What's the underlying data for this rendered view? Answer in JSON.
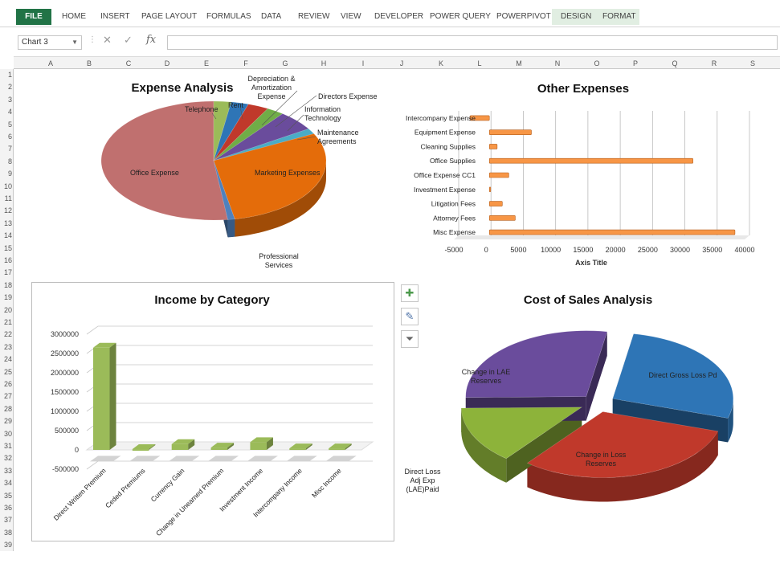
{
  "ribbon": {
    "tabs": [
      "FILE",
      "HOME",
      "INSERT",
      "PAGE LAYOUT",
      "FORMULAS",
      "DATA",
      "REVIEW",
      "VIEW",
      "DEVELOPER",
      "POWER QUERY",
      "POWERPIVOT",
      "DESIGN",
      "FORMAT"
    ]
  },
  "formula_bar": {
    "name_box": "Chart 3",
    "fx_label": "fx",
    "formula": ""
  },
  "columns": [
    "A",
    "B",
    "C",
    "D",
    "E",
    "F",
    "G",
    "H",
    "I",
    "J",
    "K",
    "L",
    "M",
    "N",
    "O",
    "P",
    "Q",
    "R",
    "S"
  ],
  "rows": [
    "1",
    "2",
    "3",
    "4",
    "5",
    "6",
    "7",
    "8",
    "9",
    "10",
    "11",
    "12",
    "13",
    "14",
    "15",
    "16",
    "17",
    "18",
    "19",
    "20",
    "21",
    "22",
    "23",
    "24",
    "25",
    "26",
    "27",
    "28",
    "29",
    "30",
    "31",
    "32",
    "33",
    "34",
    "35",
    "36",
    "37",
    "38",
    "39"
  ],
  "chart_data": [
    {
      "type": "pie",
      "title": "Expense Analysis",
      "labels": [
        "Office Expense",
        "Telephone",
        "Rent",
        "Depreciation & Amortization Expense",
        "Directors Expense",
        "Information Technology",
        "Maintenance Agreements",
        "Marketing Expenses",
        "Professional Services"
      ],
      "values": [
        52,
        2.5,
        2.5,
        3,
        2.5,
        5.5,
        1.5,
        29.5,
        1
      ],
      "colors": [
        "#c0706f",
        "#9bbb59",
        "#2e75b6",
        "#c0392b",
        "#70ad47",
        "#6a4c9c",
        "#4bacc6",
        "#e46c0a",
        "#4f81bd"
      ]
    },
    {
      "type": "bar",
      "orientation": "horizontal",
      "title": "Other Expenses",
      "categories": [
        "Misc Expense",
        "Attorney Fees",
        "Litigation Fees",
        "Investment Expense",
        "Office Expense CC1",
        "Office Supplies",
        "Cleaning Supplies",
        "Equipment Expense",
        "Intercompany Expense"
      ],
      "values": [
        38000,
        4000,
        2000,
        200,
        3000,
        31500,
        1200,
        6500,
        -3000
      ],
      "xlabel": "Axis Title",
      "ticks": [
        "-5000",
        "0",
        "5000",
        "10000",
        "15000",
        "20000",
        "25000",
        "30000",
        "35000",
        "40000"
      ],
      "xlim": [
        -5000,
        40000
      ],
      "color": "#f79646"
    },
    {
      "type": "bar",
      "title": "Income by Category",
      "categories": [
        "Direct Written Premium",
        "Ceded Premiums",
        "Currency Gain",
        "Change in Unearned Premium",
        "Investment Income",
        "Intercompany Income",
        "Misc Income"
      ],
      "values": [
        2650000,
        20000,
        150000,
        60000,
        200000,
        40000,
        40000
      ],
      "ticks": [
        "3000000",
        "2500000",
        "2000000",
        "1500000",
        "1000000",
        "500000",
        "0",
        "-500000"
      ],
      "ylim": [
        -500000,
        3000000
      ],
      "color": "#9bbb59"
    },
    {
      "type": "pie",
      "title": "Cost of Sales Analysis",
      "labels": [
        "Direct Gross Loss Pd",
        "Change in Loss Reserves",
        "Direct Loss Adj Exp (LAE)Paid",
        "Change in LAE Reserves"
      ],
      "values": [
        27,
        31,
        14,
        28
      ],
      "colors": [
        "#2e75b6",
        "#c0392b",
        "#8db33a",
        "#6a4c9c"
      ]
    }
  ]
}
